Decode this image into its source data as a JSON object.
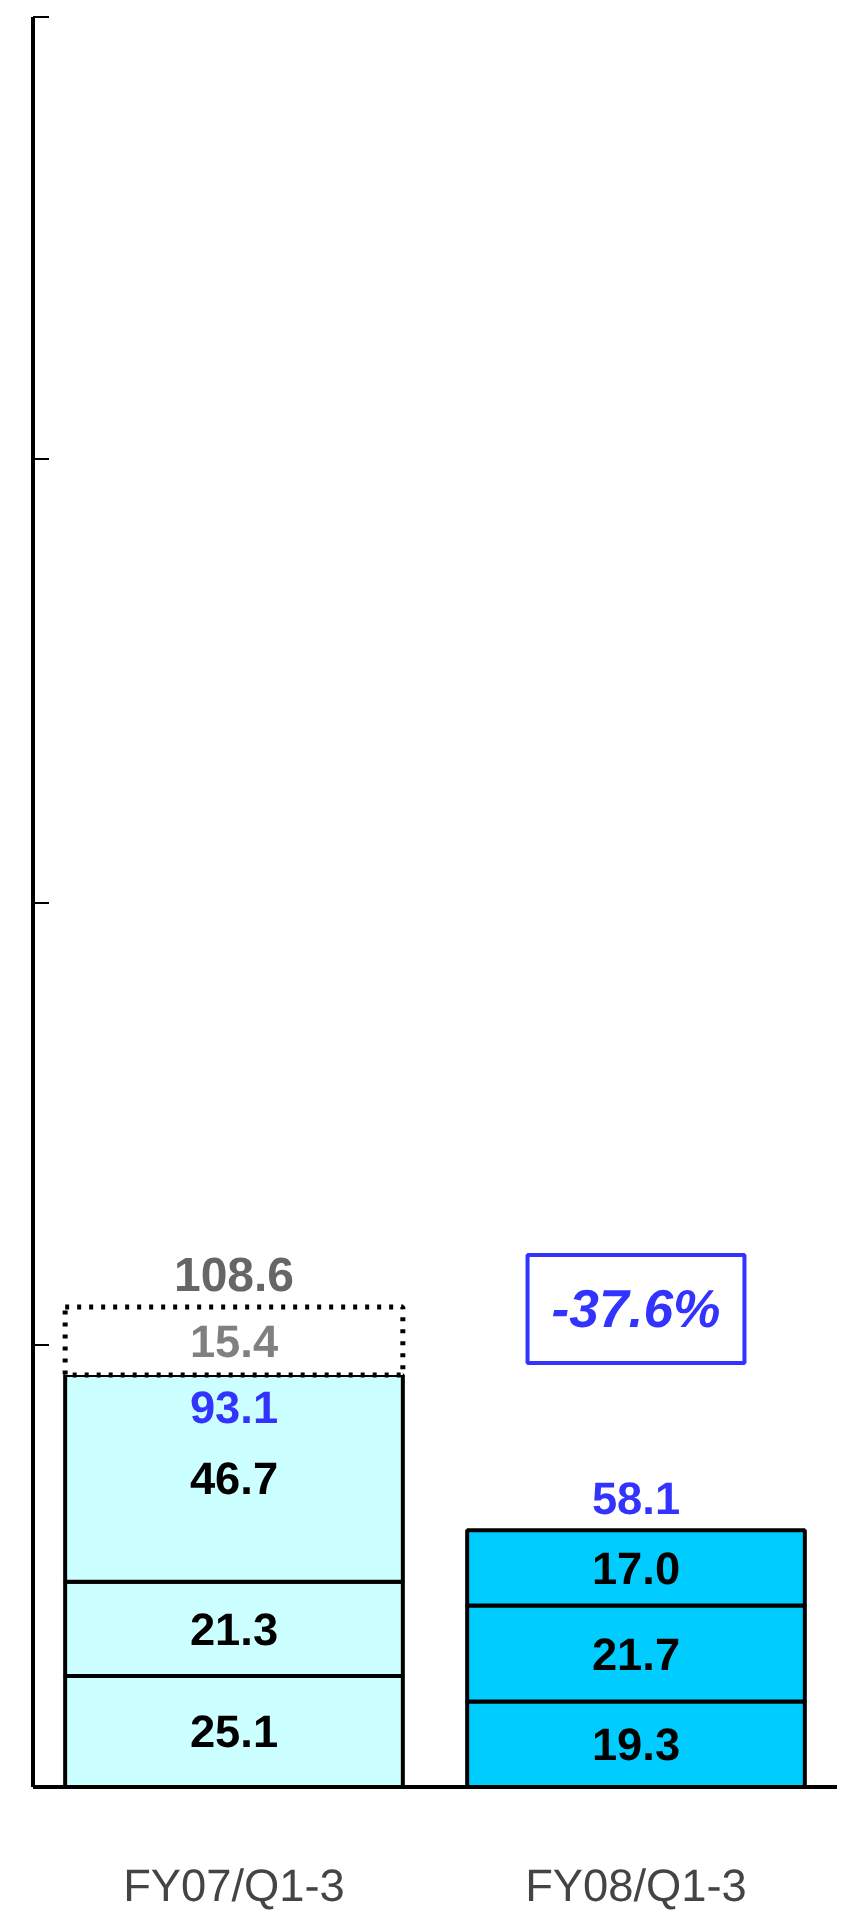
{
  "chart_data": {
    "type": "bar",
    "stacked": true,
    "categories": [
      "FY07/Q1-3",
      "FY08/Q1-3"
    ],
    "series": [
      {
        "colors": [
          "#ccffff",
          "#00ccff"
        ],
        "values": [
          25.1,
          19.3
        ],
        "value_labels": [
          "25.1",
          "19.3"
        ]
      },
      {
        "colors": [
          "#ccffff",
          "#00ccff"
        ],
        "values": [
          21.3,
          21.7
        ],
        "value_labels": [
          "21.3",
          "21.7"
        ]
      },
      {
        "colors": [
          "#ccffff",
          "#00ccff"
        ],
        "values": [
          46.7,
          17.0
        ],
        "value_labels": [
          "46.7",
          "17.0"
        ]
      },
      {
        "color": "#ffffff",
        "line_style": "dotted",
        "values": [
          15.4,
          null
        ],
        "value_labels": [
          "15.4",
          null
        ]
      }
    ],
    "ylim": [
      0,
      400
    ],
    "yticks": [
      {
        "value": 0,
        "label": null
      },
      {
        "value": 100,
        "label": null
      },
      {
        "value": 200,
        "label": null
      },
      {
        "value": 300,
        "label": null
      },
      {
        "value": 400,
        "label": null
      }
    ],
    "tick_labels": "x",
    "totals": [
      "108.6",
      "58.1"
    ],
    "annotations": [
      {
        "text": "93.1",
        "x": "FY07/Q1-3",
        "y": 93.1
      },
      "-37.6%"
    ],
    "grid": false
  }
}
